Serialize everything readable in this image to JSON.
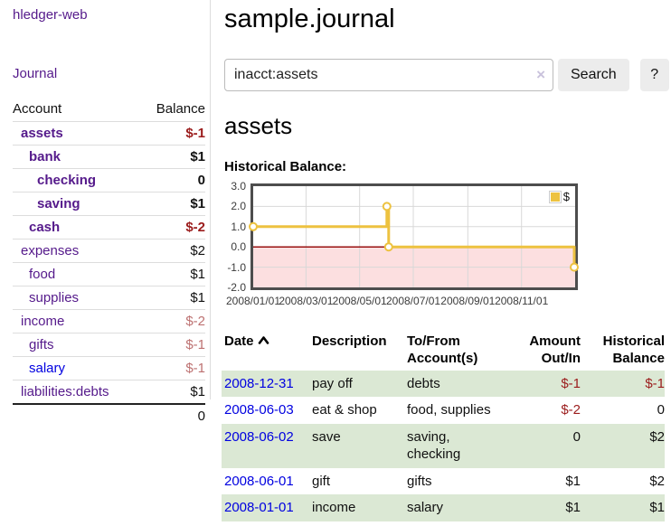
{
  "sidebar": {
    "app_title": "hledger-web",
    "nav_journal": "Journal",
    "table": {
      "account_header": "Account",
      "balance_header": "Balance",
      "rows": [
        {
          "name": "assets",
          "indent": 1,
          "bold": true,
          "balance": "$-1",
          "negative": true
        },
        {
          "name": "bank",
          "indent": 2,
          "bold": true,
          "balance": "$1",
          "negative": false
        },
        {
          "name": "checking",
          "indent": 3,
          "bold": true,
          "balance": "0",
          "negative": false
        },
        {
          "name": "saving",
          "indent": 3,
          "bold": true,
          "balance": "$1",
          "negative": false
        },
        {
          "name": "cash",
          "indent": 2,
          "bold": true,
          "balance": "$-2",
          "negative": true
        },
        {
          "name": "expenses",
          "indent": 1,
          "bold": false,
          "balance": "$2",
          "negative": false
        },
        {
          "name": "food",
          "indent": 2,
          "bold": false,
          "balance": "$1",
          "negative": false
        },
        {
          "name": "supplies",
          "indent": 2,
          "bold": false,
          "balance": "$1",
          "negative": false
        },
        {
          "name": "income",
          "indent": 1,
          "bold": false,
          "balance": "$-2",
          "negative": true
        },
        {
          "name": "gifts",
          "indent": 2,
          "bold": false,
          "balance": "$-1",
          "negative": true
        },
        {
          "name": "salary",
          "indent": 2,
          "bold": false,
          "balance": "$-1",
          "negative": true,
          "link_style": "unvisited"
        },
        {
          "name": "liabilities:debts",
          "indent": 1,
          "bold": false,
          "balance": "$1",
          "negative": false
        }
      ],
      "total": "0"
    }
  },
  "header": {
    "title": "sample.journal"
  },
  "search": {
    "query": "inacct:assets",
    "clear_icon": "×",
    "button_label": "Search",
    "help_label": "?"
  },
  "account_page": {
    "heading": "assets",
    "chart_heading": "Historical Balance:"
  },
  "chart_data": {
    "type": "line",
    "style": "step",
    "title": "Historical Balance:",
    "series": [
      {
        "name": "$",
        "color": "#edc240",
        "points": [
          [
            "2008-01-01",
            1
          ],
          [
            "2008-06-01",
            2
          ],
          [
            "2008-06-03",
            0
          ],
          [
            "2008-12-31",
            -1
          ]
        ]
      }
    ],
    "x_range": [
      "2008-01-01",
      "2009-01-01"
    ],
    "x_ticks": [
      {
        "label": "2008/01/01",
        "date": "2008-01-01"
      },
      {
        "label": "2008/03/01",
        "date": "2008-03-01"
      },
      {
        "label": "2008/05/01",
        "date": "2008-05-01"
      },
      {
        "label": "2008/07/01",
        "date": "2008-07-01"
      },
      {
        "label": "2008/09/01",
        "date": "2008-09-01"
      },
      {
        "label": "2008/11/01",
        "date": "2008-11-01"
      }
    ],
    "y_ticks": [
      {
        "label": "3.0",
        "value": 3
      },
      {
        "label": "2.0",
        "value": 2
      },
      {
        "label": "1.0",
        "value": 1
      },
      {
        "label": "0.0",
        "value": 0
      },
      {
        "label": "-1.0",
        "value": -1
      },
      {
        "label": "-2.0",
        "value": -2
      }
    ],
    "ylim": [
      -2,
      3
    ],
    "grid": true,
    "legend": {
      "label": "$",
      "position": "top-right"
    },
    "colors": {
      "line": "#edc240",
      "marker_fill": "#ffffff",
      "negative_region": "#fcdfe0",
      "zero_line": "#991111",
      "grid_line": "#d8d8d8",
      "plot_border": "#4d4d4d"
    }
  },
  "register": {
    "columns": [
      "Date",
      "Description",
      "To/From Account(s)",
      "Amount Out/In",
      "Historical Balance"
    ],
    "sort_column": "Date",
    "sort_direction": "ascending",
    "rows": [
      {
        "date": "2008-12-31",
        "description": "pay off",
        "accounts": "debts",
        "amount": "$-1",
        "amount_negative": true,
        "balance": "$-1",
        "balance_negative": true
      },
      {
        "date": "2008-06-03",
        "description": "eat & shop",
        "accounts": "food, supplies",
        "amount": "$-2",
        "amount_negative": true,
        "balance": "0",
        "balance_negative": false
      },
      {
        "date": "2008-06-02",
        "description": "save",
        "accounts": "saving, checking",
        "amount": "0",
        "amount_negative": false,
        "balance": "$2",
        "balance_negative": false
      },
      {
        "date": "2008-06-01",
        "description": "gift",
        "accounts": "gifts",
        "amount": "$1",
        "amount_negative": false,
        "balance": "$2",
        "balance_negative": false
      },
      {
        "date": "2008-01-01",
        "description": "income",
        "accounts": "salary",
        "amount": "$1",
        "amount_negative": false,
        "balance": "$1",
        "balance_negative": false
      }
    ]
  },
  "colors": {
    "link_purple": "#551a8b",
    "link_blue": "#0000e0",
    "negative_bold": "#9b1c1c",
    "negative_light": "#bd7171",
    "row_green": "#dbe8d4",
    "button_gray": "#ececec"
  }
}
